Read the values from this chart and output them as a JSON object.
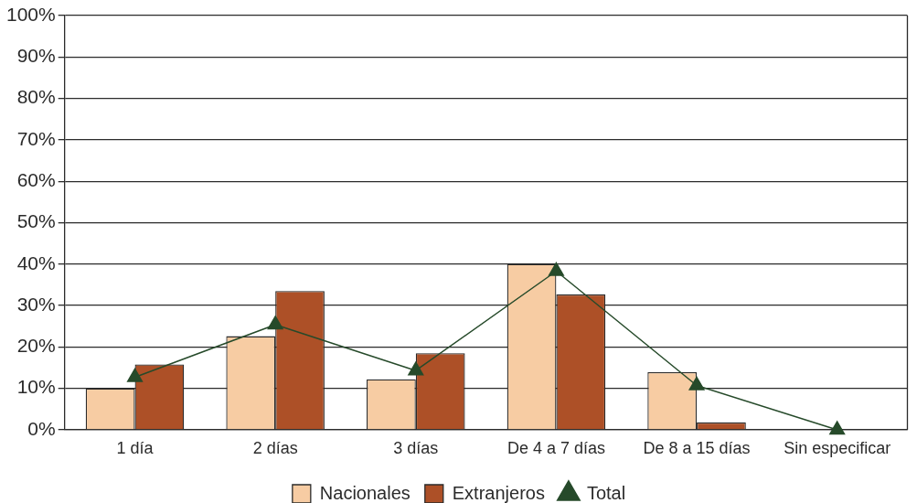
{
  "chart_data": {
    "type": "bar",
    "categories": [
      "1 día",
      "2 días",
      "3 días",
      "De 4 a 7 días",
      "De 8 a 15 días",
      "Sin especificar"
    ],
    "series": [
      {
        "name": "Nacionales",
        "color": "#f7cca3",
        "values": [
          10.0,
          22.6,
          12.2,
          40.0,
          13.9,
          0
        ]
      },
      {
        "name": "Extranjeros",
        "color": "#ad5027",
        "values": [
          15.8,
          33.5,
          18.5,
          32.7,
          1.8,
          0
        ]
      },
      {
        "name": "Total",
        "type": "line",
        "color": "#264a2a",
        "values": [
          12.7,
          25.4,
          14.3,
          38.3,
          10.7,
          0
        ]
      }
    ],
    "ylim": [
      0,
      100
    ],
    "yticks": [
      {
        "value": 0,
        "label": "0%"
      },
      {
        "value": 10,
        "label": "10%"
      },
      {
        "value": 20,
        "label": "20%"
      },
      {
        "value": 30,
        "label": "30%"
      },
      {
        "value": 40,
        "label": "40%"
      },
      {
        "value": 50,
        "label": "50%"
      },
      {
        "value": 60,
        "label": "60%"
      },
      {
        "value": 70,
        "label": "70%"
      },
      {
        "value": 80,
        "label": "80%"
      },
      {
        "value": 90,
        "label": "90%"
      },
      {
        "value": 100,
        "label": "100%"
      }
    ],
    "grid": "y",
    "legend": "bottom",
    "marker": "triangle"
  }
}
